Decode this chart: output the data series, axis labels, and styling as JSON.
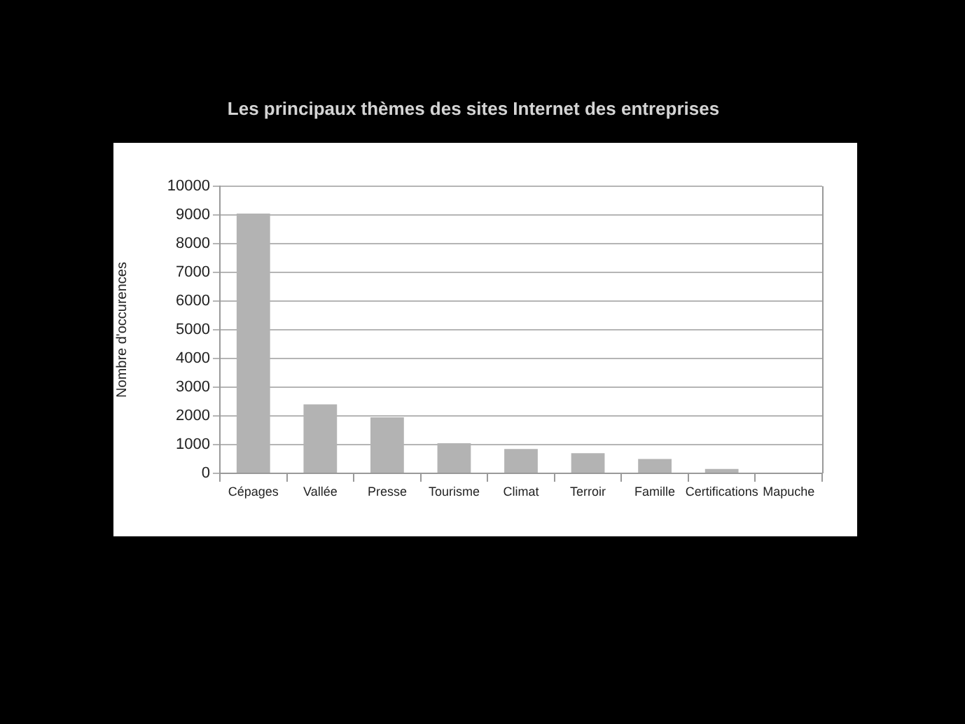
{
  "chart_data": {
    "type": "bar",
    "title": "Les principaux thèmes des sites Internet des entreprises",
    "ylabel": "Nombre d'occurences",
    "categories": [
      "Cépages",
      "Vallée",
      "Presse",
      "Tourisme",
      "Climat",
      "Terroir",
      "Famille",
      "Certifications",
      "Mapuche"
    ],
    "values": [
      9050,
      2400,
      1950,
      1050,
      850,
      700,
      500,
      150,
      0
    ],
    "color": "#b3b3b3",
    "ylim": [
      0,
      10000
    ],
    "yticks": [
      0,
      1000,
      2000,
      3000,
      4000,
      5000,
      6000,
      7000,
      8000,
      9000,
      10000
    ],
    "grid": "y"
  }
}
